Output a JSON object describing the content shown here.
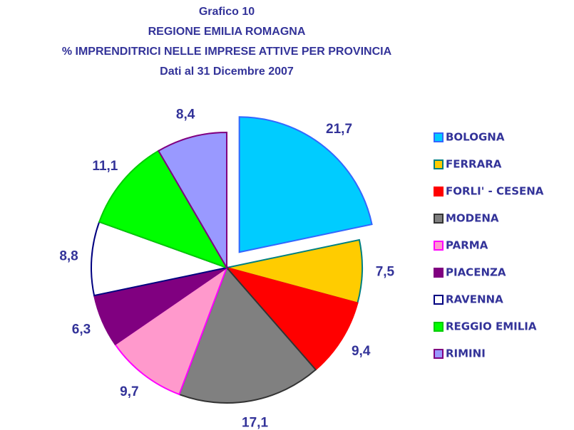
{
  "chart_data": {
    "type": "pie",
    "title": [
      "Grafico 10",
      "REGIONE EMILIA ROMAGNA",
      "% IMPRENDITRICI NELLE IMPRESE ATTIVE PER PROVINCIA",
      "Dati al 31 Dicembre 2007"
    ],
    "categories": [
      "BOLOGNA",
      "FERRARA",
      "FORLI' - CESENA",
      "MODENA",
      "PARMA",
      "PIACENZA",
      "RAVENNA",
      "REGGIO EMILIA",
      "RIMINI"
    ],
    "values": [
      21.7,
      7.5,
      9.4,
      17.1,
      9.7,
      6.3,
      8.8,
      11.1,
      8.4
    ],
    "value_labels": [
      "21,7",
      "7,5",
      "9,4",
      "17,1",
      "9,7",
      "6,3",
      "8,8",
      "11,1",
      "8,4"
    ],
    "colors": [
      "#00ccff",
      "#ffcc00",
      "#ff0000",
      "#808080",
      "#ff99cc",
      "#800080",
      "#ffffff",
      "#00ff00",
      "#9999ff"
    ],
    "edge_colors": [
      "#3366ff",
      "#008080",
      "#ff0000",
      "#333333",
      "#ff00ff",
      "#800080",
      "#000080",
      "#00cc00",
      "#800080"
    ],
    "legend": "right"
  }
}
